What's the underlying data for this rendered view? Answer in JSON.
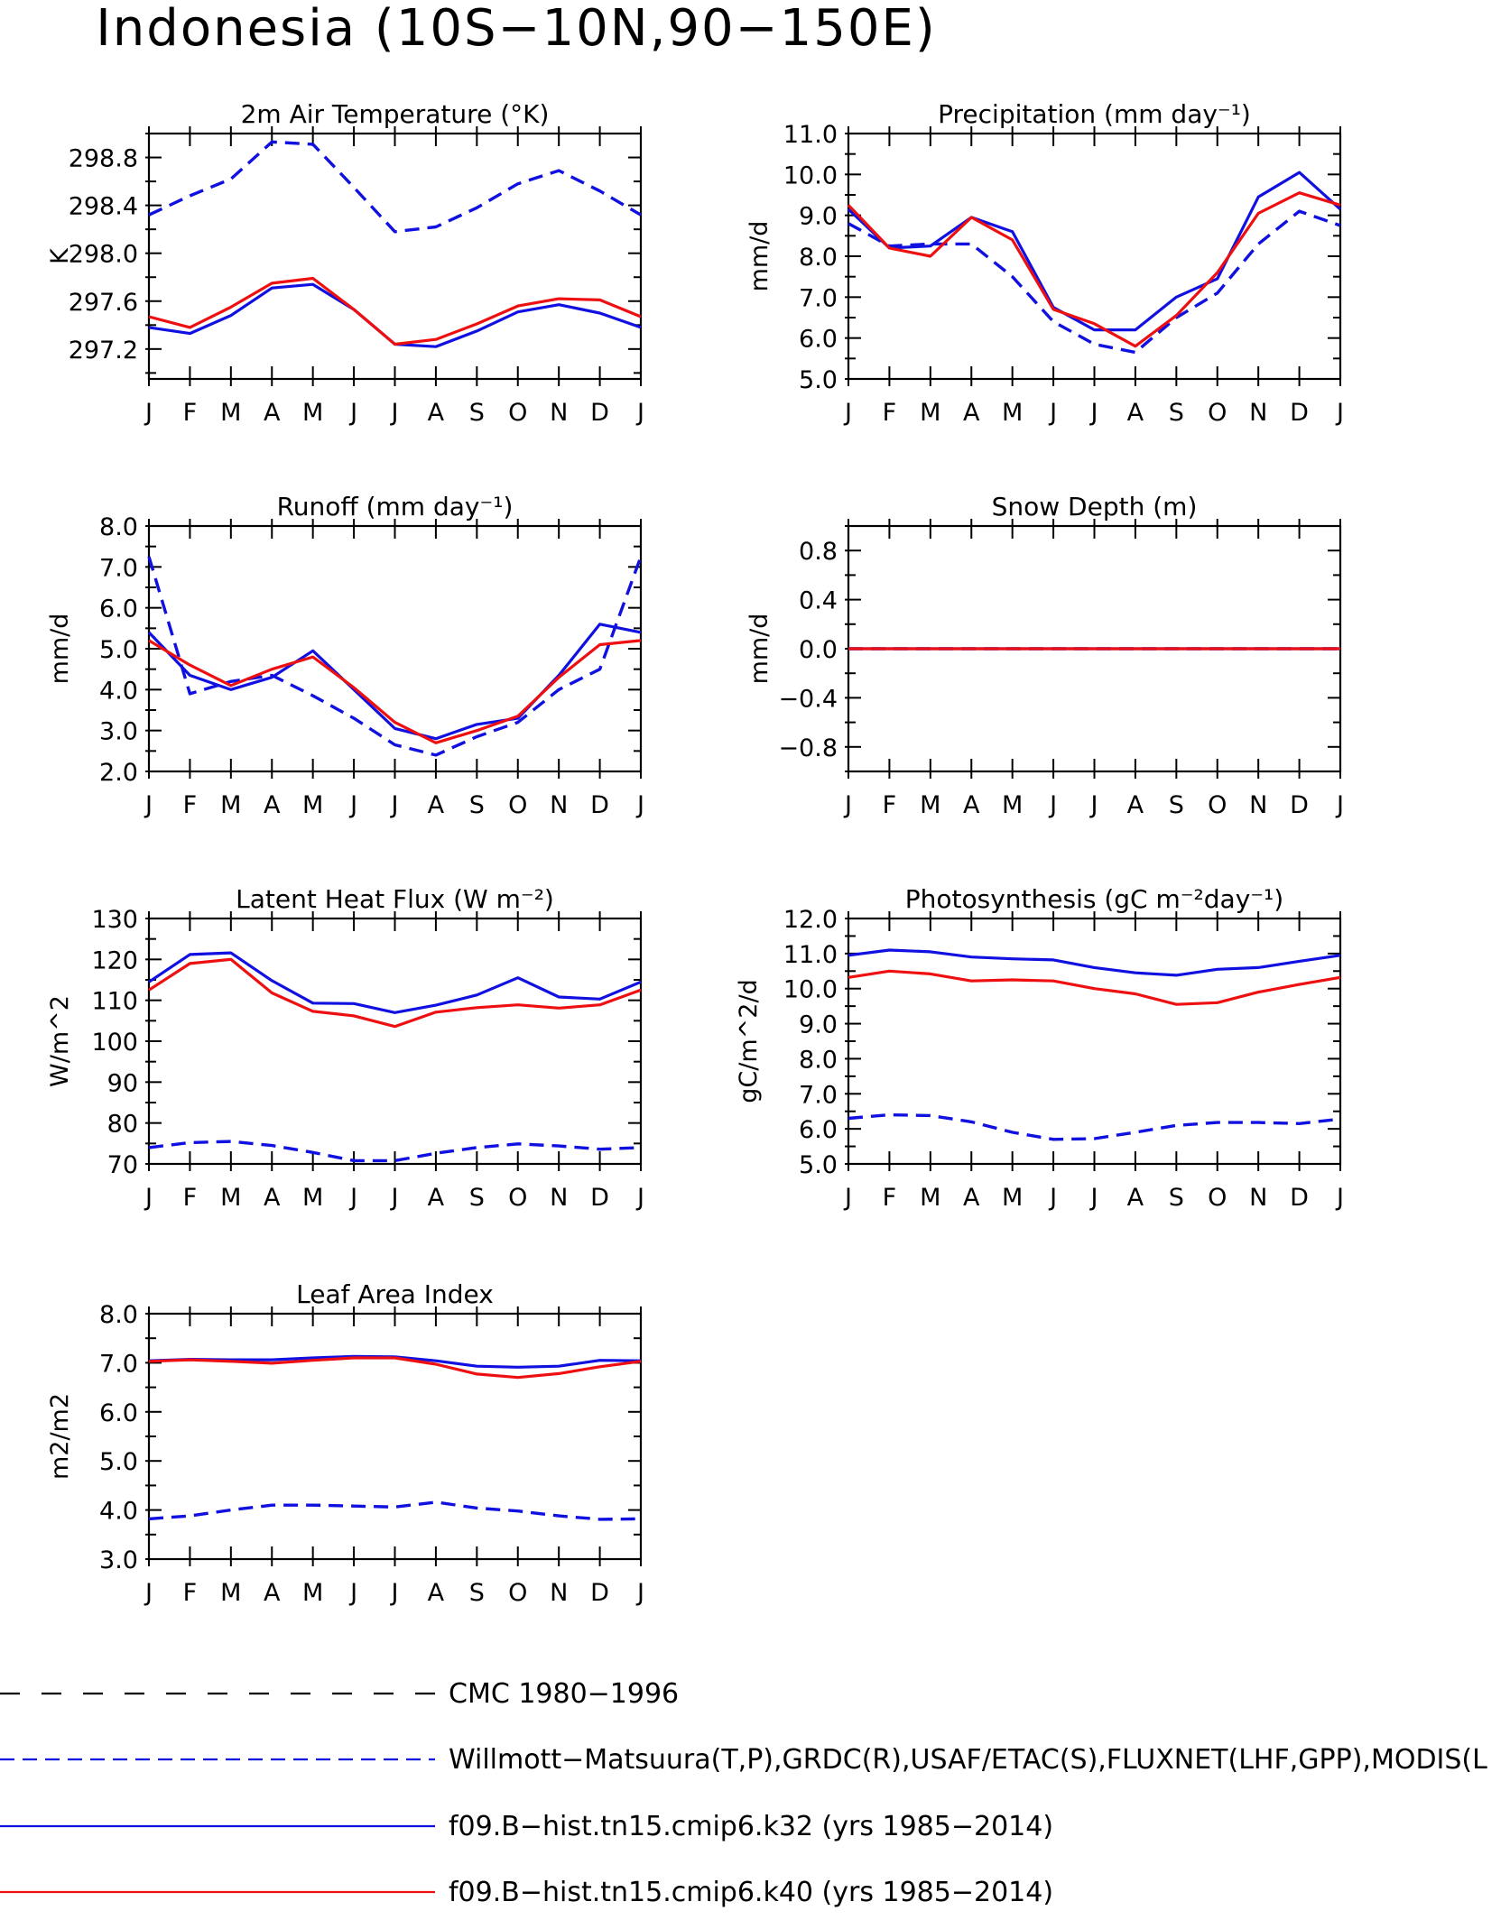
{
  "title": "Indonesia (10S−10N,90−150E)",
  "months": [
    "J",
    "F",
    "M",
    "A",
    "M",
    "J",
    "J",
    "A",
    "S",
    "O",
    "N",
    "D",
    "J"
  ],
  "colors": {
    "cmc": "#000000",
    "obs": "#1010e0",
    "k32": "#1010e0",
    "k40": "#ee1010"
  },
  "chart_data": [
    {
      "type": "line",
      "title": "2m Air Temperature (°K)",
      "ylabel": "K",
      "ylim": [
        296.95,
        299.0
      ],
      "yticks": [
        "297.2",
        "297.6",
        "298.0",
        "298.4",
        "298.8"
      ],
      "categories": [
        "J",
        "F",
        "M",
        "A",
        "M",
        "J",
        "J",
        "A",
        "S",
        "O",
        "N",
        "D",
        "J"
      ],
      "series": [
        {
          "name": "Willmott−Matsuura(T,P),GRDC(R),USAF/ETAC(S),FLUXNET(LHF,GPP),MODIS(L",
          "style": "obs",
          "values": [
            298.32,
            298.48,
            298.62,
            298.93,
            298.91,
            298.55,
            298.18,
            298.22,
            298.38,
            298.58,
            298.69,
            298.52,
            298.32
          ]
        },
        {
          "name": "f09.B−hist.tn15.cmip6.k32 (yrs 1985−2014)",
          "style": "k32",
          "values": [
            297.38,
            297.33,
            297.48,
            297.71,
            297.74,
            297.53,
            297.24,
            297.22,
            297.35,
            297.51,
            297.57,
            297.5,
            297.38
          ]
        },
        {
          "name": "f09.B−hist.tn15.cmip6.k40 (yrs 1985−2014)",
          "style": "k40",
          "values": [
            297.47,
            297.38,
            297.55,
            297.75,
            297.79,
            297.53,
            297.24,
            297.28,
            297.41,
            297.56,
            297.62,
            297.61,
            297.47
          ]
        }
      ]
    },
    {
      "type": "line",
      "title": "Precipitation (mm day⁻¹)",
      "ylabel": "mm/d",
      "ylim": [
        5.0,
        11.0
      ],
      "yticks": [
        "5.0",
        "6.0",
        "7.0",
        "8.0",
        "9.0",
        "10.0",
        "11.0"
      ],
      "categories": [
        "J",
        "F",
        "M",
        "A",
        "M",
        "J",
        "J",
        "A",
        "S",
        "O",
        "N",
        "D",
        "J"
      ],
      "series": [
        {
          "name": "Willmott−Matsuura(T,P),GRDC(R),USAF/ETAC(S),FLUXNET(LHF,GPP),MODIS(L",
          "style": "obs",
          "values": [
            8.8,
            8.25,
            8.3,
            8.3,
            7.5,
            6.4,
            5.85,
            5.65,
            6.5,
            7.1,
            8.3,
            9.1,
            8.75
          ]
        },
        {
          "name": "f09.B−hist.tn15.cmip6.k32 (yrs 1985−2014)",
          "style": "k32",
          "values": [
            9.15,
            8.2,
            8.25,
            8.95,
            8.6,
            6.75,
            6.2,
            6.2,
            7.0,
            7.45,
            9.45,
            10.05,
            9.15
          ]
        },
        {
          "name": "f09.B−hist.tn15.cmip6.k40 (yrs 1985−2014)",
          "style": "k40",
          "values": [
            9.25,
            8.2,
            8.0,
            8.95,
            8.4,
            6.7,
            6.35,
            5.8,
            6.55,
            7.6,
            9.05,
            9.55,
            9.25
          ]
        }
      ]
    },
    {
      "type": "line",
      "title": "Runoff (mm day⁻¹)",
      "ylabel": "mm/d",
      "ylim": [
        2.0,
        8.0
      ],
      "yticks": [
        "2.0",
        "3.0",
        "4.0",
        "5.0",
        "6.0",
        "7.0",
        "8.0"
      ],
      "categories": [
        "J",
        "F",
        "M",
        "A",
        "M",
        "J",
        "J",
        "A",
        "S",
        "O",
        "N",
        "D",
        "J"
      ],
      "series": [
        {
          "name": "Willmott−Matsuura(T,P),GRDC(R),USAF/ETAC(S),FLUXNET(LHF,GPP),MODIS(L",
          "style": "obs",
          "values": [
            7.25,
            3.9,
            4.2,
            4.35,
            3.85,
            3.3,
            2.65,
            2.4,
            2.85,
            3.2,
            4.0,
            4.5,
            7.25
          ]
        },
        {
          "name": "f09.B−hist.tn15.cmip6.k32 (yrs 1985−2014)",
          "style": "k32",
          "values": [
            5.4,
            4.35,
            4.0,
            4.3,
            4.95,
            4.0,
            3.05,
            2.8,
            3.15,
            3.3,
            4.35,
            5.6,
            5.4
          ]
        },
        {
          "name": "f09.B−hist.tn15.cmip6.k40 (yrs 1985−2014)",
          "style": "k40",
          "values": [
            5.2,
            4.6,
            4.1,
            4.5,
            4.8,
            4.05,
            3.2,
            2.7,
            3.0,
            3.35,
            4.3,
            5.1,
            5.2
          ]
        }
      ]
    },
    {
      "type": "line",
      "title": "Snow Depth (m)",
      "ylabel": "mm/d",
      "ylim": [
        -1.0,
        1.0
      ],
      "yticks": [
        "−0.8",
        "−0.4",
        "0.0",
        "0.4",
        "0.8"
      ],
      "categories": [
        "J",
        "F",
        "M",
        "A",
        "M",
        "J",
        "J",
        "A",
        "S",
        "O",
        "N",
        "D",
        "J"
      ],
      "series": [
        {
          "name": "Willmott−Matsuura(T,P),GRDC(R),USAF/ETAC(S),FLUXNET(LHF,GPP),MODIS(L",
          "style": "obs",
          "values": [
            0,
            0,
            0,
            0,
            0,
            0,
            0,
            0,
            0,
            0,
            0,
            0,
            0
          ]
        },
        {
          "name": "f09.B−hist.tn15.cmip6.k32 (yrs 1985−2014)",
          "style": "k32",
          "values": [
            0,
            0,
            0,
            0,
            0,
            0,
            0,
            0,
            0,
            0,
            0,
            0,
            0
          ]
        },
        {
          "name": "f09.B−hist.tn15.cmip6.k40 (yrs 1985−2014)",
          "style": "k40",
          "values": [
            0,
            0,
            0,
            0,
            0,
            0,
            0,
            0,
            0,
            0,
            0,
            0,
            0
          ]
        }
      ]
    },
    {
      "type": "line",
      "title": "Latent Heat Flux (W m⁻²)",
      "ylabel": "W/m^2",
      "ylim": [
        70,
        130
      ],
      "yticks": [
        "70",
        "80",
        "90",
        "100",
        "110",
        "120",
        "130"
      ],
      "categories": [
        "J",
        "F",
        "M",
        "A",
        "M",
        "J",
        "J",
        "A",
        "S",
        "O",
        "N",
        "D",
        "J"
      ],
      "series": [
        {
          "name": "Willmott−Matsuura(T,P),GRDC(R),USAF/ETAC(S),FLUXNET(LHF,GPP),MODIS(L",
          "style": "obs",
          "values": [
            74.0,
            75.2,
            75.5,
            74.5,
            72.8,
            70.8,
            70.8,
            72.6,
            74.0,
            74.9,
            74.4,
            73.6,
            74.0
          ]
        },
        {
          "name": "f09.B−hist.tn15.cmip6.k32 (yrs 1985−2014)",
          "style": "k32",
          "values": [
            114.5,
            121.2,
            121.6,
            114.8,
            109.3,
            109.2,
            107.0,
            108.8,
            111.3,
            115.5,
            110.8,
            110.3,
            114.5
          ]
        },
        {
          "name": "f09.B−hist.tn15.cmip6.k40 (yrs 1985−2014)",
          "style": "k40",
          "values": [
            112.5,
            119.0,
            120.0,
            111.8,
            107.3,
            106.2,
            103.6,
            107.1,
            108.2,
            108.9,
            108.1,
            108.9,
            112.5
          ]
        }
      ]
    },
    {
      "type": "line",
      "title": "Photosynthesis (gC m⁻²day⁻¹)",
      "ylabel": "gC/m^2/d",
      "ylim": [
        5.0,
        12.0
      ],
      "yticks": [
        "5.0",
        "6.0",
        "7.0",
        "8.0",
        "9.0",
        "10.0",
        "11.0",
        "12.0"
      ],
      "categories": [
        "J",
        "F",
        "M",
        "A",
        "M",
        "J",
        "J",
        "A",
        "S",
        "O",
        "N",
        "D",
        "J"
      ],
      "series": [
        {
          "name": "Willmott−Matsuura(T,P),GRDC(R),USAF/ETAC(S),FLUXNET(LHF,GPP),MODIS(L",
          "style": "obs",
          "values": [
            6.3,
            6.4,
            6.38,
            6.2,
            5.9,
            5.7,
            5.72,
            5.9,
            6.1,
            6.18,
            6.18,
            6.15,
            6.28
          ]
        },
        {
          "name": "f09.B−hist.tn15.cmip6.k32 (yrs 1985−2014)",
          "style": "k32",
          "values": [
            10.95,
            11.1,
            11.05,
            10.9,
            10.85,
            10.82,
            10.6,
            10.45,
            10.38,
            10.55,
            10.6,
            10.78,
            10.95
          ]
        },
        {
          "name": "f09.B−hist.tn15.cmip6.k40 (yrs 1985−2014)",
          "style": "k40",
          "values": [
            10.32,
            10.5,
            10.42,
            10.22,
            10.25,
            10.22,
            10.0,
            9.85,
            9.55,
            9.6,
            9.9,
            10.12,
            10.32
          ]
        }
      ]
    },
    {
      "type": "line",
      "title": "Leaf Area Index",
      "ylabel": "m2/m2",
      "ylim": [
        3.0,
        8.0
      ],
      "yticks": [
        "3.0",
        "4.0",
        "5.0",
        "6.0",
        "7.0",
        "8.0"
      ],
      "categories": [
        "J",
        "F",
        "M",
        "A",
        "M",
        "J",
        "J",
        "A",
        "S",
        "O",
        "N",
        "D",
        "J"
      ],
      "series": [
        {
          "name": "Willmott−Matsuura(T,P),GRDC(R),USAF/ETAC(S),FLUXNET(LHF,GPP),MODIS(L",
          "style": "obs",
          "values": [
            3.82,
            3.88,
            4.0,
            4.1,
            4.1,
            4.08,
            4.06,
            4.16,
            4.04,
            3.98,
            3.88,
            3.81,
            3.82
          ]
        },
        {
          "name": "f09.B−hist.tn15.cmip6.k32 (yrs 1985−2014)",
          "style": "k32",
          "values": [
            7.04,
            7.07,
            7.06,
            7.06,
            7.1,
            7.13,
            7.12,
            7.04,
            6.93,
            6.91,
            6.93,
            7.05,
            7.04
          ]
        },
        {
          "name": "f09.B−hist.tn15.cmip6.k40 (yrs 1985−2014)",
          "style": "k40",
          "values": [
            7.03,
            7.06,
            7.03,
            6.99,
            7.05,
            7.1,
            7.1,
            6.97,
            6.77,
            6.7,
            6.78,
            6.92,
            7.03
          ]
        }
      ]
    }
  ],
  "legend": [
    {
      "label": "CMC 1980−1996",
      "style": "cmc"
    },
    {
      "label": "Willmott−Matsuura(T,P),GRDC(R),USAF/ETAC(S),FLUXNET(LHF,GPP),MODIS(L",
      "style": "obs"
    },
    {
      "label": "f09.B−hist.tn15.cmip6.k32 (yrs 1985−2014)",
      "style": "k32"
    },
    {
      "label": "f09.B−hist.tn15.cmip6.k40 (yrs 1985−2014)",
      "style": "k40"
    }
  ]
}
